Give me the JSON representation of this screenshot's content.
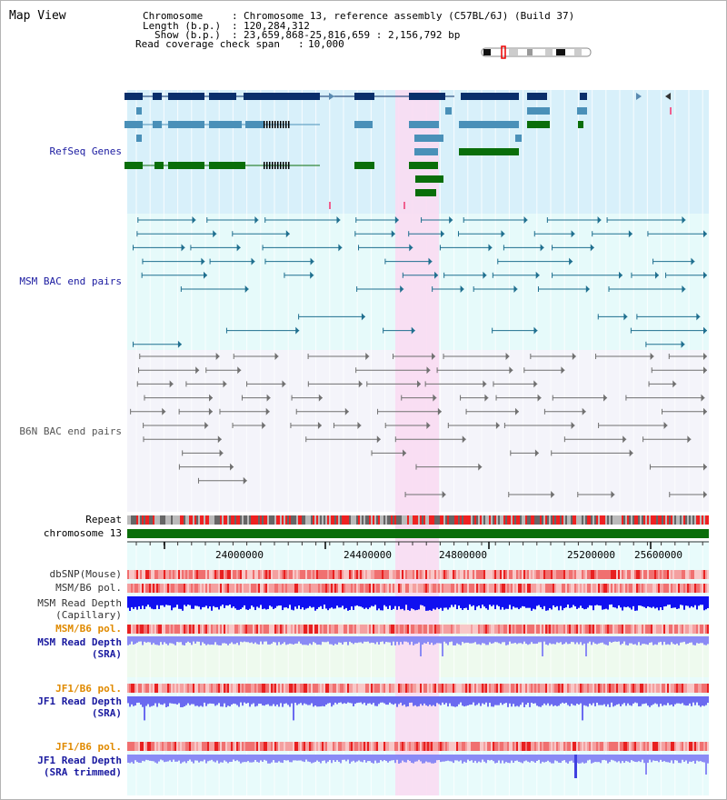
{
  "title": "Map View",
  "header": {
    "chromosome_key": "Chromosome",
    "chromosome_value": "Chromosome 13, reference assembly (C57BL/6J) (Build 37)",
    "length_key": "Length (b.p.)",
    "length_value": "120,284,312",
    "show_key": "Show (b.p.)",
    "show_value": "23,659,868-25,816,659 : 2,156,792 bp",
    "coverage_key": "Read coverage check span",
    "coverage_value": "10,000",
    "sep": ":"
  },
  "tracks": {
    "refseq": "RefSeq Genes",
    "msm_bac": "MSM BAC end pairs",
    "b6n_bac": "B6N BAC end pairs",
    "repeat": "Repeat",
    "chromosome": "chromosome 13",
    "dbsnp": "dbSNP(Mouse)",
    "msm_b6_pol_1": "MSM/B6 pol.",
    "msm_read_depth_cap_1": "MSM Read Depth",
    "msm_read_depth_cap_2": "(Capillary)",
    "msm_b6_pol_2": "MSM/B6 pol.",
    "msm_read_depth_sra_1": "MSM Read Depth",
    "msm_read_depth_sra_2": "(SRA)",
    "jf1_b6_pol_1": "JF1/B6 pol.",
    "jf1_read_depth_sra_1": "JF1 Read Depth",
    "jf1_read_depth_sra_2": "(SRA)",
    "jf1_b6_pol_2": "JF1/B6 pol.",
    "jf1_read_depth_trim_1": "JF1 Read Depth",
    "jf1_read_depth_trim_2": "(SRA trimmed)"
  },
  "axis": {
    "ticks": [
      "24000000",
      "24400000",
      "24800000",
      "25200000",
      "25600000"
    ]
  },
  "colors": {
    "refseq_bg": "#d8f0fa",
    "bac_bg": "#e6fafa",
    "highlight": "#fadcf2",
    "refseq_dark": "#0a2f6b",
    "refseq_mid": "#4a90b8",
    "refseq_green": "#0a6e0a",
    "msm_line": "#1f6f8f",
    "b6n_line": "#707070",
    "chromosome_bar": "#0a6e0a",
    "label_blue": "#1a1aa0",
    "label_orange": "#e08a00",
    "depth_blue": "#1010f0",
    "depth_light": "#8a8af5"
  }
}
